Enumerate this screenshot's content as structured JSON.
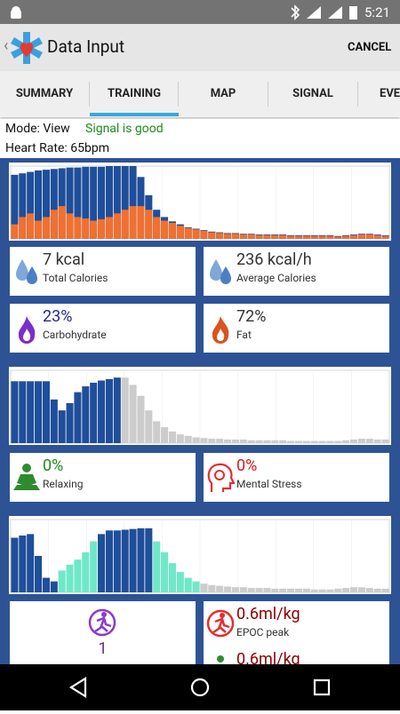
{
  "status_bar": {
    "time": "5:21"
  },
  "app_bar": {
    "title": "Data Input",
    "action": "CANCEL"
  },
  "tabs": [
    "SUMMARY",
    "TRAINING",
    "MAP",
    "SIGNAL",
    "EVE"
  ],
  "info": {
    "mode": "Mode: View",
    "signal": "Signal is good",
    "heart_rate": "Heart Rate: 65bpm"
  },
  "charts": [
    {
      "ylim": [
        0,
        100
      ],
      "series": [
        {
          "color": "#1f4e9a",
          "values": [
            88,
            90,
            92,
            94,
            95,
            96,
            97,
            98,
            98,
            99,
            99,
            99,
            100,
            100,
            100,
            100,
            85,
            60,
            40,
            30,
            24,
            20,
            16,
            14,
            12,
            10,
            9,
            8,
            8,
            7,
            7,
            6,
            6,
            6,
            6,
            5,
            5,
            5,
            5,
            5,
            5,
            4,
            5,
            6,
            7,
            7,
            6,
            5
          ]
        },
        {
          "color": "#f07030",
          "values": [
            20,
            30,
            35,
            25,
            30,
            40,
            45,
            35,
            30,
            28,
            25,
            27,
            30,
            35,
            40,
            45,
            45,
            40,
            30,
            25,
            22,
            18,
            15,
            13,
            11,
            9,
            8,
            7,
            7,
            6,
            6,
            5,
            5,
            5,
            5,
            4,
            4,
            4,
            4,
            4,
            4,
            3,
            4,
            5,
            6,
            6,
            5,
            4
          ]
        }
      ]
    },
    {
      "ylim": [
        0,
        100
      ],
      "series": [
        {
          "color": "#1f4e9a",
          "values": [
            85,
            85,
            85,
            85,
            85,
            60,
            45,
            55,
            70,
            78,
            83,
            86,
            88,
            90,
            null,
            null,
            null,
            null,
            null,
            null,
            null,
            null,
            null,
            null,
            null,
            null,
            null,
            null,
            null,
            null,
            null,
            null,
            null,
            null,
            null,
            null,
            null,
            null,
            null,
            null,
            null,
            null,
            null,
            null,
            null,
            null,
            null,
            null
          ]
        },
        {
          "color": "#cccccc",
          "values": [
            null,
            null,
            null,
            null,
            null,
            null,
            null,
            null,
            null,
            null,
            null,
            null,
            null,
            null,
            90,
            80,
            65,
            45,
            30,
            22,
            16,
            12,
            10,
            8,
            7,
            6,
            6,
            5,
            5,
            5,
            4,
            4,
            4,
            4,
            4,
            3,
            3,
            3,
            3,
            3,
            3,
            3,
            4,
            5,
            6,
            6,
            5,
            5
          ]
        }
      ]
    },
    {
      "ylim": [
        0,
        100
      ],
      "series": [
        {
          "color": "#1f4e9a",
          "values": [
            75,
            78,
            80,
            50,
            20,
            15,
            null,
            null,
            null,
            null,
            null,
            80,
            85,
            85,
            86,
            87,
            88,
            88,
            null,
            null,
            null,
            null,
            null,
            null,
            null,
            null,
            null,
            null,
            null,
            null,
            null,
            null,
            null,
            null,
            null,
            null,
            null,
            null,
            null,
            null,
            null,
            null,
            null,
            null,
            null,
            null,
            null,
            null
          ]
        },
        {
          "color": "#6fe8c8",
          "values": [
            null,
            null,
            null,
            null,
            null,
            null,
            30,
            38,
            45,
            55,
            70,
            null,
            null,
            null,
            null,
            null,
            null,
            null,
            70,
            55,
            40,
            28,
            20,
            15,
            null,
            null,
            null,
            null,
            null,
            null,
            null,
            null,
            null,
            null,
            null,
            null,
            null,
            null,
            null,
            null,
            null,
            null,
            null,
            null,
            null,
            null,
            null,
            null
          ]
        },
        {
          "color": "#cccccc",
          "values": [
            null,
            null,
            null,
            null,
            null,
            null,
            null,
            null,
            null,
            null,
            null,
            null,
            null,
            null,
            null,
            null,
            null,
            null,
            null,
            null,
            null,
            null,
            null,
            null,
            12,
            10,
            9,
            8,
            7,
            7,
            6,
            6,
            6,
            5,
            5,
            5,
            5,
            5,
            4,
            4,
            4,
            5,
            6,
            7,
            7,
            6,
            5,
            5
          ]
        }
      ]
    }
  ],
  "cards": [
    {
      "value": "7 kcal",
      "label": "Total Calories"
    },
    {
      "value": "236 kcal/h",
      "label": "Average Calories"
    },
    {
      "value": "23%",
      "label": "Carbohydrate"
    },
    {
      "value": "72%",
      "label": "Fat"
    },
    {
      "value": "0%",
      "label": "Relaxing"
    },
    {
      "value": "0%",
      "label": "Mental Stress"
    },
    {
      "value": "1"
    },
    {
      "value": "0.6ml/kg",
      "label": "EPOC peak"
    },
    {
      "value": "0.6ml/kg"
    }
  ]
}
